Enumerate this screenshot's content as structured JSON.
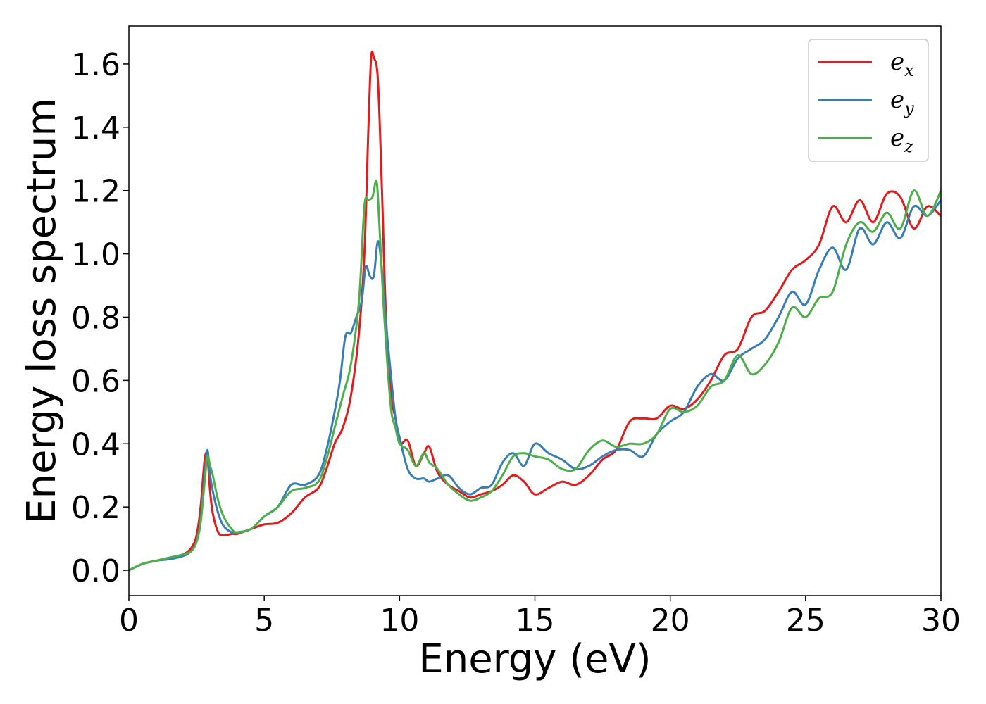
{
  "chart_data": {
    "type": "line",
    "title": "",
    "xlabel": "Energy (eV)",
    "ylabel": "Energy loss spectrum",
    "xlim": [
      0,
      30
    ],
    "ylim": [
      -0.08,
      1.72
    ],
    "xticks": [
      0,
      5,
      10,
      15,
      20,
      25,
      30
    ],
    "xtick_labels": [
      "0",
      "5",
      "10",
      "15",
      "20",
      "25",
      "30"
    ],
    "yticks": [
      0.0,
      0.2,
      0.4,
      0.6,
      0.8,
      1.0,
      1.2,
      1.4,
      1.6
    ],
    "ytick_labels": [
      "0.0",
      "0.2",
      "0.4",
      "0.6",
      "0.8",
      "1.0",
      "1.2",
      "1.4",
      "1.6"
    ],
    "grid": false,
    "legend_position": "top-right",
    "series": [
      {
        "name": "e_x",
        "label_base": "e",
        "label_sub": "x",
        "color": "#e41a1c",
        "x": [
          0,
          0.5,
          1,
          1.5,
          2,
          2.3,
          2.5,
          2.65,
          2.8,
          2.9,
          3.0,
          3.1,
          3.3,
          3.5,
          3.8,
          4,
          4.5,
          5,
          5.5,
          6,
          6.5,
          7,
          7.3,
          7.6,
          7.9,
          8.2,
          8.5,
          8.7,
          8.85,
          8.95,
          9.05,
          9.2,
          9.35,
          9.5,
          9.7,
          9.85,
          10,
          10.3,
          10.6,
          10.9,
          11.1,
          11.4,
          11.8,
          12.2,
          12.6,
          13,
          13.4,
          13.8,
          14.2,
          14.6,
          15,
          15.5,
          16,
          16.5,
          17,
          17.5,
          18,
          18.5,
          19,
          19.5,
          20,
          20.5,
          21,
          21.5,
          22,
          22.5,
          23,
          23.5,
          24,
          24.5,
          25,
          25.5,
          26,
          26.5,
          27,
          27.5,
          28,
          28.5,
          29,
          29.5,
          30
        ],
        "y": [
          0,
          0.02,
          0.03,
          0.04,
          0.05,
          0.07,
          0.11,
          0.2,
          0.35,
          0.36,
          0.25,
          0.18,
          0.12,
          0.11,
          0.115,
          0.115,
          0.13,
          0.145,
          0.15,
          0.18,
          0.23,
          0.26,
          0.32,
          0.4,
          0.45,
          0.55,
          0.75,
          1.0,
          1.4,
          1.62,
          1.62,
          1.55,
          1.2,
          0.8,
          0.55,
          0.48,
          0.4,
          0.41,
          0.33,
          0.37,
          0.39,
          0.31,
          0.27,
          0.25,
          0.23,
          0.24,
          0.25,
          0.27,
          0.3,
          0.28,
          0.24,
          0.26,
          0.28,
          0.27,
          0.3,
          0.35,
          0.38,
          0.47,
          0.48,
          0.48,
          0.52,
          0.51,
          0.54,
          0.6,
          0.68,
          0.7,
          0.8,
          0.82,
          0.88,
          0.95,
          0.98,
          1.03,
          1.15,
          1.1,
          1.17,
          1.1,
          1.19,
          1.18,
          1.08,
          1.15,
          1.12
        ]
      },
      {
        "name": "e_y",
        "label_base": "e",
        "label_sub": "y",
        "color": "#377eb8",
        "x": [
          0,
          0.5,
          1,
          1.5,
          2,
          2.3,
          2.5,
          2.65,
          2.8,
          2.9,
          3.0,
          3.1,
          3.3,
          3.5,
          3.8,
          4,
          4.5,
          5,
          5.5,
          6,
          6.5,
          7,
          7.3,
          7.6,
          7.8,
          8,
          8.2,
          8.4,
          8.6,
          8.75,
          8.9,
          9.05,
          9.2,
          9.35,
          9.5,
          9.7,
          9.85,
          10,
          10.3,
          10.6,
          10.9,
          11.1,
          11.4,
          11.8,
          12.2,
          12.6,
          13,
          13.4,
          13.8,
          14.2,
          14.6,
          15,
          15.5,
          16,
          16.5,
          17,
          17.5,
          18,
          18.5,
          19,
          19.5,
          20,
          20.5,
          21,
          21.5,
          22,
          22.5,
          23,
          23.5,
          24,
          24.5,
          25,
          25.5,
          26,
          26.5,
          27,
          27.5,
          28,
          28.5,
          29,
          29.5,
          30
        ],
        "y": [
          0,
          0.02,
          0.03,
          0.035,
          0.045,
          0.06,
          0.09,
          0.16,
          0.3,
          0.38,
          0.3,
          0.25,
          0.18,
          0.14,
          0.12,
          0.12,
          0.13,
          0.17,
          0.2,
          0.27,
          0.27,
          0.3,
          0.38,
          0.5,
          0.6,
          0.74,
          0.75,
          0.8,
          0.85,
          0.96,
          0.93,
          0.93,
          1.04,
          0.95,
          0.78,
          0.6,
          0.48,
          0.42,
          0.32,
          0.29,
          0.29,
          0.28,
          0.29,
          0.3,
          0.26,
          0.24,
          0.26,
          0.27,
          0.34,
          0.37,
          0.33,
          0.4,
          0.37,
          0.35,
          0.32,
          0.33,
          0.36,
          0.38,
          0.38,
          0.36,
          0.43,
          0.47,
          0.5,
          0.58,
          0.62,
          0.6,
          0.67,
          0.7,
          0.73,
          0.8,
          0.88,
          0.84,
          0.95,
          1.02,
          0.95,
          1.08,
          1.03,
          1.1,
          1.05,
          1.15,
          1.12,
          1.17
        ]
      },
      {
        "name": "e_z",
        "label_base": "e",
        "label_sub": "z",
        "color": "#4daf4a",
        "x": [
          0,
          0.5,
          1,
          1.5,
          2,
          2.3,
          2.5,
          2.65,
          2.8,
          2.9,
          3.0,
          3.1,
          3.3,
          3.5,
          3.8,
          4,
          4.5,
          5,
          5.5,
          6,
          6.5,
          7,
          7.3,
          7.6,
          7.9,
          8.2,
          8.5,
          8.7,
          8.85,
          9.0,
          9.15,
          9.25,
          9.4,
          9.55,
          9.7,
          9.85,
          10,
          10.3,
          10.6,
          10.9,
          11.1,
          11.4,
          11.8,
          12.2,
          12.6,
          13,
          13.4,
          13.8,
          14.2,
          14.6,
          15,
          15.5,
          16,
          16.5,
          17,
          17.5,
          18,
          18.5,
          19,
          19.5,
          20,
          20.5,
          21,
          21.5,
          22,
          22.5,
          23,
          23.5,
          24,
          24.5,
          25,
          25.5,
          26,
          26.5,
          27,
          27.5,
          28,
          28.5,
          29,
          29.5,
          30
        ],
        "y": [
          0,
          0.02,
          0.03,
          0.04,
          0.05,
          0.06,
          0.09,
          0.15,
          0.28,
          0.36,
          0.33,
          0.3,
          0.22,
          0.17,
          0.13,
          0.12,
          0.13,
          0.17,
          0.2,
          0.25,
          0.26,
          0.28,
          0.35,
          0.45,
          0.55,
          0.65,
          0.85,
          1.15,
          1.17,
          1.18,
          1.23,
          1.1,
          0.85,
          0.65,
          0.5,
          0.45,
          0.4,
          0.38,
          0.33,
          0.37,
          0.34,
          0.32,
          0.27,
          0.24,
          0.22,
          0.23,
          0.25,
          0.3,
          0.36,
          0.37,
          0.36,
          0.35,
          0.32,
          0.32,
          0.38,
          0.41,
          0.39,
          0.4,
          0.4,
          0.43,
          0.51,
          0.5,
          0.52,
          0.58,
          0.6,
          0.68,
          0.62,
          0.65,
          0.72,
          0.83,
          0.8,
          0.86,
          0.88,
          1.03,
          1.1,
          1.07,
          1.13,
          1.08,
          1.2,
          1.12,
          1.2
        ]
      }
    ]
  }
}
